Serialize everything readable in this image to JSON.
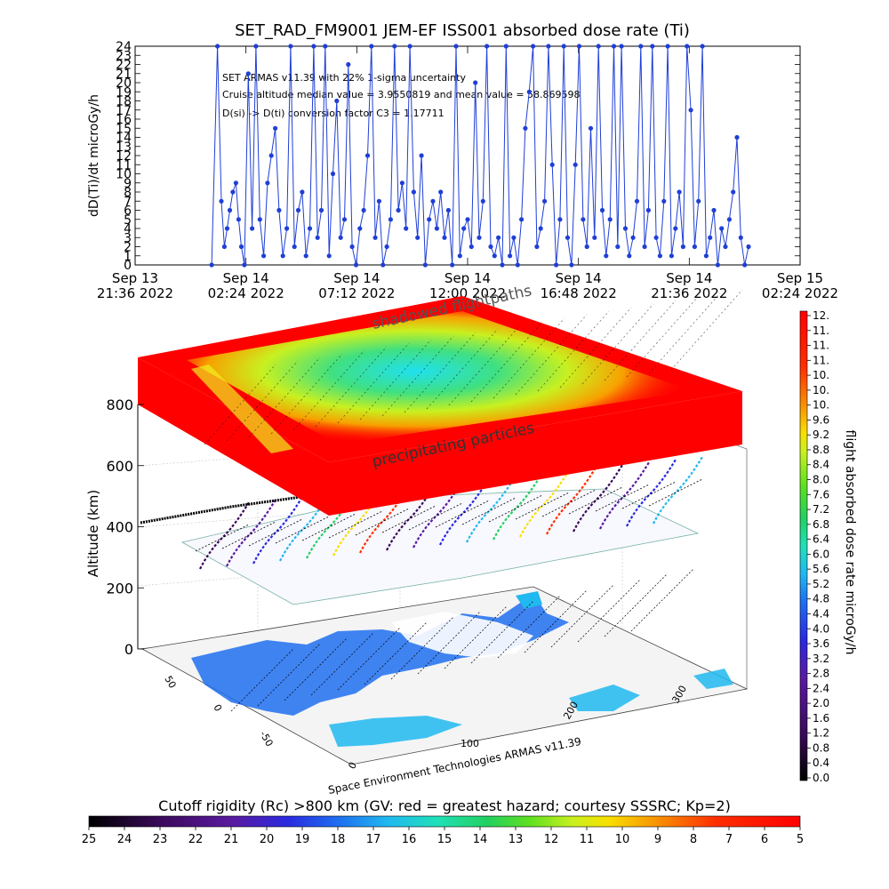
{
  "chart_data": [
    {
      "type": "line",
      "title": "SET_RAD_FM9001  JEM-EF ISS001 absorbed dose rate (Ti)",
      "ylabel": "dD(Ti)/dt microGy/h",
      "ylim": [
        0,
        24
      ],
      "yticks": [
        "0",
        "1",
        "2",
        "3",
        "4",
        "5",
        "6",
        "7",
        "8",
        "9",
        "10",
        "11",
        "12",
        "13",
        "14",
        "15",
        "16",
        "17",
        "18",
        "19",
        "20",
        "21",
        "22",
        "23",
        "24"
      ],
      "xlim": [
        "2022-09-13T21:36",
        "2022-09-15T02:24"
      ],
      "xticks": [
        {
          "line1": "Sep 13",
          "line2": "21:36 2022",
          "t": "2022-09-13T21:36"
        },
        {
          "line1": "Sep 14",
          "line2": "02:24 2022",
          "t": "2022-09-14T02:24"
        },
        {
          "line1": "Sep 14",
          "line2": "07:12 2022",
          "t": "2022-09-14T07:12"
        },
        {
          "line1": "Sep 14",
          "line2": "12:00 2022",
          "t": "2022-09-14T12:00"
        },
        {
          "line1": "Sep 14",
          "line2": "16:48 2022",
          "t": "2022-09-14T16:48"
        },
        {
          "line1": "Sep 14",
          "line2": "21:36 2022",
          "t": "2022-09-14T21:36"
        },
        {
          "line1": "Sep 15",
          "line2": "02:24 2022",
          "t": "2022-09-15T02:24"
        }
      ],
      "annotations": [
        "SET ARMAS v11.39 with 22% 1-sigma uncertainty",
        "Cruise altitude median value = 3.9550819 and mean value = 58.869598",
        "D(si) -> D(ti) conversion factor C3 = 1.17711"
      ],
      "series": [
        {
          "color": "#1f3fd6",
          "points": [
            [
              "2022-09-14T00:55",
              0
            ],
            [
              "2022-09-14T01:10",
              24
            ],
            [
              "2022-09-14T01:20",
              7
            ],
            [
              "2022-09-14T01:28",
              2
            ],
            [
              "2022-09-14T01:35",
              4
            ],
            [
              "2022-09-14T01:42",
              6
            ],
            [
              "2022-09-14T01:50",
              8
            ],
            [
              "2022-09-14T01:58",
              9
            ],
            [
              "2022-09-14T02:05",
              5
            ],
            [
              "2022-09-14T02:12",
              2
            ],
            [
              "2022-09-14T02:20",
              0
            ],
            [
              "2022-09-14T02:30",
              21
            ],
            [
              "2022-09-14T02:40",
              4
            ],
            [
              "2022-09-14T02:50",
              24
            ],
            [
              "2022-09-14T03:00",
              5
            ],
            [
              "2022-09-14T03:10",
              1
            ],
            [
              "2022-09-14T03:20",
              9
            ],
            [
              "2022-09-14T03:30",
              12
            ],
            [
              "2022-09-14T03:40",
              15
            ],
            [
              "2022-09-14T03:50",
              6
            ],
            [
              "2022-09-14T04:00",
              1
            ],
            [
              "2022-09-14T04:10",
              4
            ],
            [
              "2022-09-14T04:20",
              24
            ],
            [
              "2022-09-14T04:30",
              2
            ],
            [
              "2022-09-14T04:40",
              6
            ],
            [
              "2022-09-14T04:50",
              8
            ],
            [
              "2022-09-14T05:00",
              1
            ],
            [
              "2022-09-14T05:10",
              4
            ],
            [
              "2022-09-14T05:20",
              24
            ],
            [
              "2022-09-14T05:30",
              3
            ],
            [
              "2022-09-14T05:40",
              6
            ],
            [
              "2022-09-14T05:50",
              24
            ],
            [
              "2022-09-14T06:00",
              1
            ],
            [
              "2022-09-14T06:10",
              10
            ],
            [
              "2022-09-14T06:20",
              18
            ],
            [
              "2022-09-14T06:30",
              3
            ],
            [
              "2022-09-14T06:40",
              5
            ],
            [
              "2022-09-14T06:50",
              22
            ],
            [
              "2022-09-14T07:00",
              2
            ],
            [
              "2022-09-14T07:10",
              0
            ],
            [
              "2022-09-14T07:20",
              4
            ],
            [
              "2022-09-14T07:30",
              6
            ],
            [
              "2022-09-14T07:40",
              12
            ],
            [
              "2022-09-14T07:50",
              24
            ],
            [
              "2022-09-14T08:00",
              3
            ],
            [
              "2022-09-14T08:10",
              7
            ],
            [
              "2022-09-14T08:20",
              0
            ],
            [
              "2022-09-14T08:30",
              2
            ],
            [
              "2022-09-14T08:40",
              5
            ],
            [
              "2022-09-14T08:50",
              24
            ],
            [
              "2022-09-14T09:00",
              6
            ],
            [
              "2022-09-14T09:10",
              9
            ],
            [
              "2022-09-14T09:20",
              4
            ],
            [
              "2022-09-14T09:30",
              24
            ],
            [
              "2022-09-14T09:40",
              8
            ],
            [
              "2022-09-14T09:50",
              3
            ],
            [
              "2022-09-14T10:00",
              12
            ],
            [
              "2022-09-14T10:10",
              0
            ],
            [
              "2022-09-14T10:20",
              5
            ],
            [
              "2022-09-14T10:30",
              7
            ],
            [
              "2022-09-14T10:40",
              4
            ],
            [
              "2022-09-14T10:50",
              8
            ],
            [
              "2022-09-14T11:00",
              3
            ],
            [
              "2022-09-14T11:10",
              6
            ],
            [
              "2022-09-14T11:20",
              0
            ],
            [
              "2022-09-14T11:30",
              24
            ],
            [
              "2022-09-14T11:40",
              1
            ],
            [
              "2022-09-14T11:50",
              4
            ],
            [
              "2022-09-14T12:00",
              5
            ],
            [
              "2022-09-14T12:10",
              2
            ],
            [
              "2022-09-14T12:20",
              20
            ],
            [
              "2022-09-14T12:30",
              3
            ],
            [
              "2022-09-14T12:40",
              7
            ],
            [
              "2022-09-14T12:50",
              24
            ],
            [
              "2022-09-14T13:00",
              2
            ],
            [
              "2022-09-14T13:10",
              1
            ],
            [
              "2022-09-14T13:20",
              3
            ],
            [
              "2022-09-14T13:30",
              0
            ],
            [
              "2022-09-14T13:40",
              24
            ],
            [
              "2022-09-14T13:50",
              1
            ],
            [
              "2022-09-14T14:00",
              3
            ],
            [
              "2022-09-14T14:10",
              0
            ],
            [
              "2022-09-14T14:20",
              5
            ],
            [
              "2022-09-14T14:30",
              15
            ],
            [
              "2022-09-14T14:40",
              19
            ],
            [
              "2022-09-14T14:50",
              24
            ],
            [
              "2022-09-14T15:00",
              2
            ],
            [
              "2022-09-14T15:10",
              4
            ],
            [
              "2022-09-14T15:20",
              7
            ],
            [
              "2022-09-14T15:30",
              24
            ],
            [
              "2022-09-14T15:40",
              11
            ],
            [
              "2022-09-14T15:50",
              0
            ],
            [
              "2022-09-14T16:00",
              5
            ],
            [
              "2022-09-14T16:10",
              24
            ],
            [
              "2022-09-14T16:20",
              3
            ],
            [
              "2022-09-14T16:30",
              0
            ],
            [
              "2022-09-14T16:40",
              11
            ],
            [
              "2022-09-14T16:50",
              24
            ],
            [
              "2022-09-14T17:00",
              5
            ],
            [
              "2022-09-14T17:10",
              2
            ],
            [
              "2022-09-14T17:20",
              15
            ],
            [
              "2022-09-14T17:30",
              3
            ],
            [
              "2022-09-14T17:40",
              24
            ],
            [
              "2022-09-14T17:50",
              6
            ],
            [
              "2022-09-14T18:00",
              1
            ],
            [
              "2022-09-14T18:10",
              5
            ],
            [
              "2022-09-14T18:20",
              24
            ],
            [
              "2022-09-14T18:30",
              2
            ],
            [
              "2022-09-14T18:40",
              24
            ],
            [
              "2022-09-14T18:50",
              4
            ],
            [
              "2022-09-14T19:00",
              1
            ],
            [
              "2022-09-14T19:10",
              3
            ],
            [
              "2022-09-14T19:20",
              7
            ],
            [
              "2022-09-14T19:30",
              24
            ],
            [
              "2022-09-14T19:40",
              2
            ],
            [
              "2022-09-14T19:50",
              6
            ],
            [
              "2022-09-14T20:00",
              24
            ],
            [
              "2022-09-14T20:10",
              3
            ],
            [
              "2022-09-14T20:20",
              1
            ],
            [
              "2022-09-14T20:30",
              7
            ],
            [
              "2022-09-14T20:40",
              24
            ],
            [
              "2022-09-14T20:50",
              1
            ],
            [
              "2022-09-14T21:00",
              4
            ],
            [
              "2022-09-14T21:10",
              8
            ],
            [
              "2022-09-14T21:20",
              2
            ],
            [
              "2022-09-14T21:30",
              24
            ],
            [
              "2022-09-14T21:40",
              17
            ],
            [
              "2022-09-14T21:50",
              2
            ],
            [
              "2022-09-14T22:00",
              7
            ],
            [
              "2022-09-14T22:10",
              24
            ],
            [
              "2022-09-14T22:20",
              1
            ],
            [
              "2022-09-14T22:30",
              3
            ],
            [
              "2022-09-14T22:40",
              6
            ],
            [
              "2022-09-14T22:50",
              0
            ],
            [
              "2022-09-14T23:00",
              4
            ],
            [
              "2022-09-14T23:10",
              2
            ],
            [
              "2022-09-14T23:20",
              5
            ],
            [
              "2022-09-14T23:30",
              8
            ],
            [
              "2022-09-14T23:40",
              14
            ],
            [
              "2022-09-14T23:50",
              3
            ],
            [
              "2022-09-15T00:00",
              0
            ],
            [
              "2022-09-15T00:10",
              2
            ]
          ]
        }
      ]
    },
    {
      "type": "scatter",
      "ylabel": "Altitude (km)",
      "zlim": [
        0,
        800
      ],
      "zticks": [
        "0",
        "200",
        "400",
        "600",
        "800"
      ],
      "xticks": [
        "0",
        "100",
        "200",
        "300"
      ],
      "yticks": [
        "50",
        "0",
        "-50"
      ],
      "layer_labels": [
        "shadowed flightpaths",
        "precipitating particles"
      ],
      "credit": "Space Environment Technologies ARMAS v11.39",
      "colorbar": {
        "label": "flight absorbed dose rate microGy/h",
        "ticks": [
          "12.",
          "11.",
          "11.",
          "11.",
          "10.",
          "10.",
          "10.",
          "9.6",
          "9.2",
          "8.8",
          "8.4",
          "8.0",
          "7.6",
          "7.2",
          "6.8",
          "6.4",
          "6.0",
          "5.6",
          "5.2",
          "4.8",
          "4.4",
          "4.0",
          "3.6",
          "3.2",
          "2.8",
          "2.4",
          "2.0",
          "1.6",
          "1.2",
          "0.8",
          "0.4",
          "0.0"
        ]
      }
    },
    {
      "type": "heatmap",
      "title": "Cutoff rigidity (Rc) >800 km (GV: red = greatest hazard; courtesy SSSRC; Kp=2)",
      "ticks": [
        "25",
        "24",
        "23",
        "22",
        "21",
        "20",
        "19",
        "18",
        "17",
        "16",
        "15",
        "14",
        "13",
        "12",
        "11",
        "10",
        "9",
        "8",
        "7",
        "6",
        "5"
      ]
    }
  ]
}
